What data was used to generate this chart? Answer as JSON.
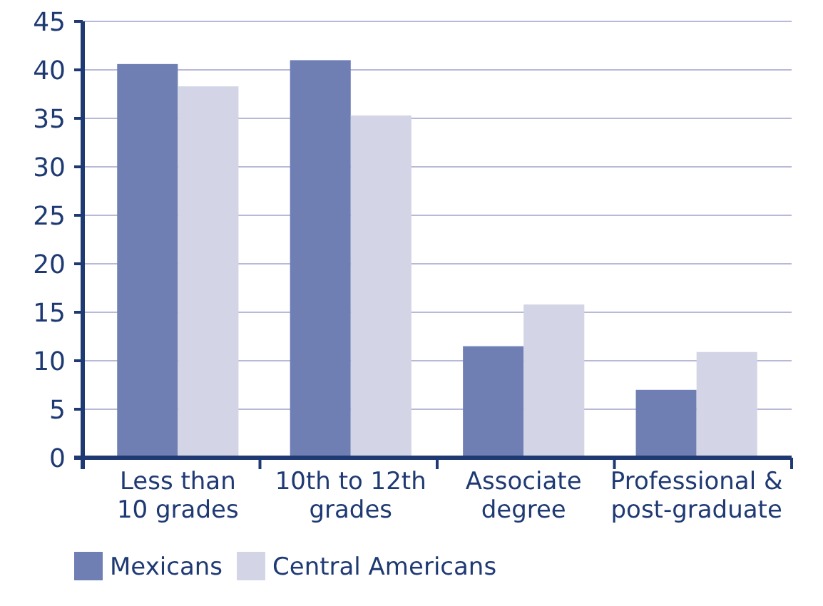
{
  "chart_data": {
    "type": "bar",
    "categories": [
      "Less than\n10 grades",
      "10th to 12th\ngrades",
      "Associate\ndegree",
      "Professional &\npost-graduate"
    ],
    "series": [
      {
        "name": "Mexicans",
        "color": "#6f7fb3",
        "values": [
          40.6,
          41.0,
          11.5,
          7.0
        ]
      },
      {
        "name": "Central Americans",
        "color": "#d3d4e6",
        "values": [
          38.3,
          35.3,
          15.8,
          10.9
        ]
      }
    ],
    "ylim": [
      0,
      45
    ],
    "yticks": [
      0,
      5,
      10,
      15,
      20,
      25,
      30,
      35,
      40,
      45
    ],
    "grid": "y",
    "legend": "bottom left"
  }
}
